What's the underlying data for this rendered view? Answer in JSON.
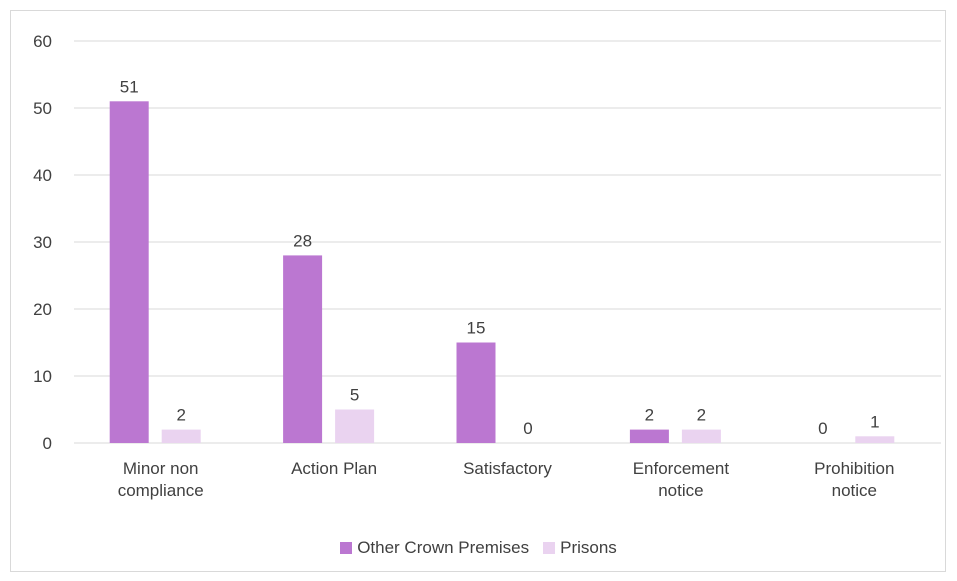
{
  "chart_data": {
    "type": "bar",
    "categories": [
      [
        "Minor non",
        "compliance"
      ],
      [
        "Action Plan"
      ],
      [
        "Satisfactory"
      ],
      [
        "Enforcement",
        "notice"
      ],
      [
        "Prohibition",
        "notice"
      ]
    ],
    "series": [
      {
        "name": "Other Crown Premises",
        "color": "#bb77d1",
        "values": [
          51,
          28,
          15,
          2,
          0
        ]
      },
      {
        "name": "Prisons",
        "color": "#ead3f0",
        "values": [
          2,
          5,
          0,
          2,
          1
        ]
      }
    ],
    "yticks": [
      0,
      10,
      20,
      30,
      40,
      50,
      60
    ],
    "ylim": [
      0,
      60
    ],
    "grid": true,
    "legend_position": "bottom"
  }
}
